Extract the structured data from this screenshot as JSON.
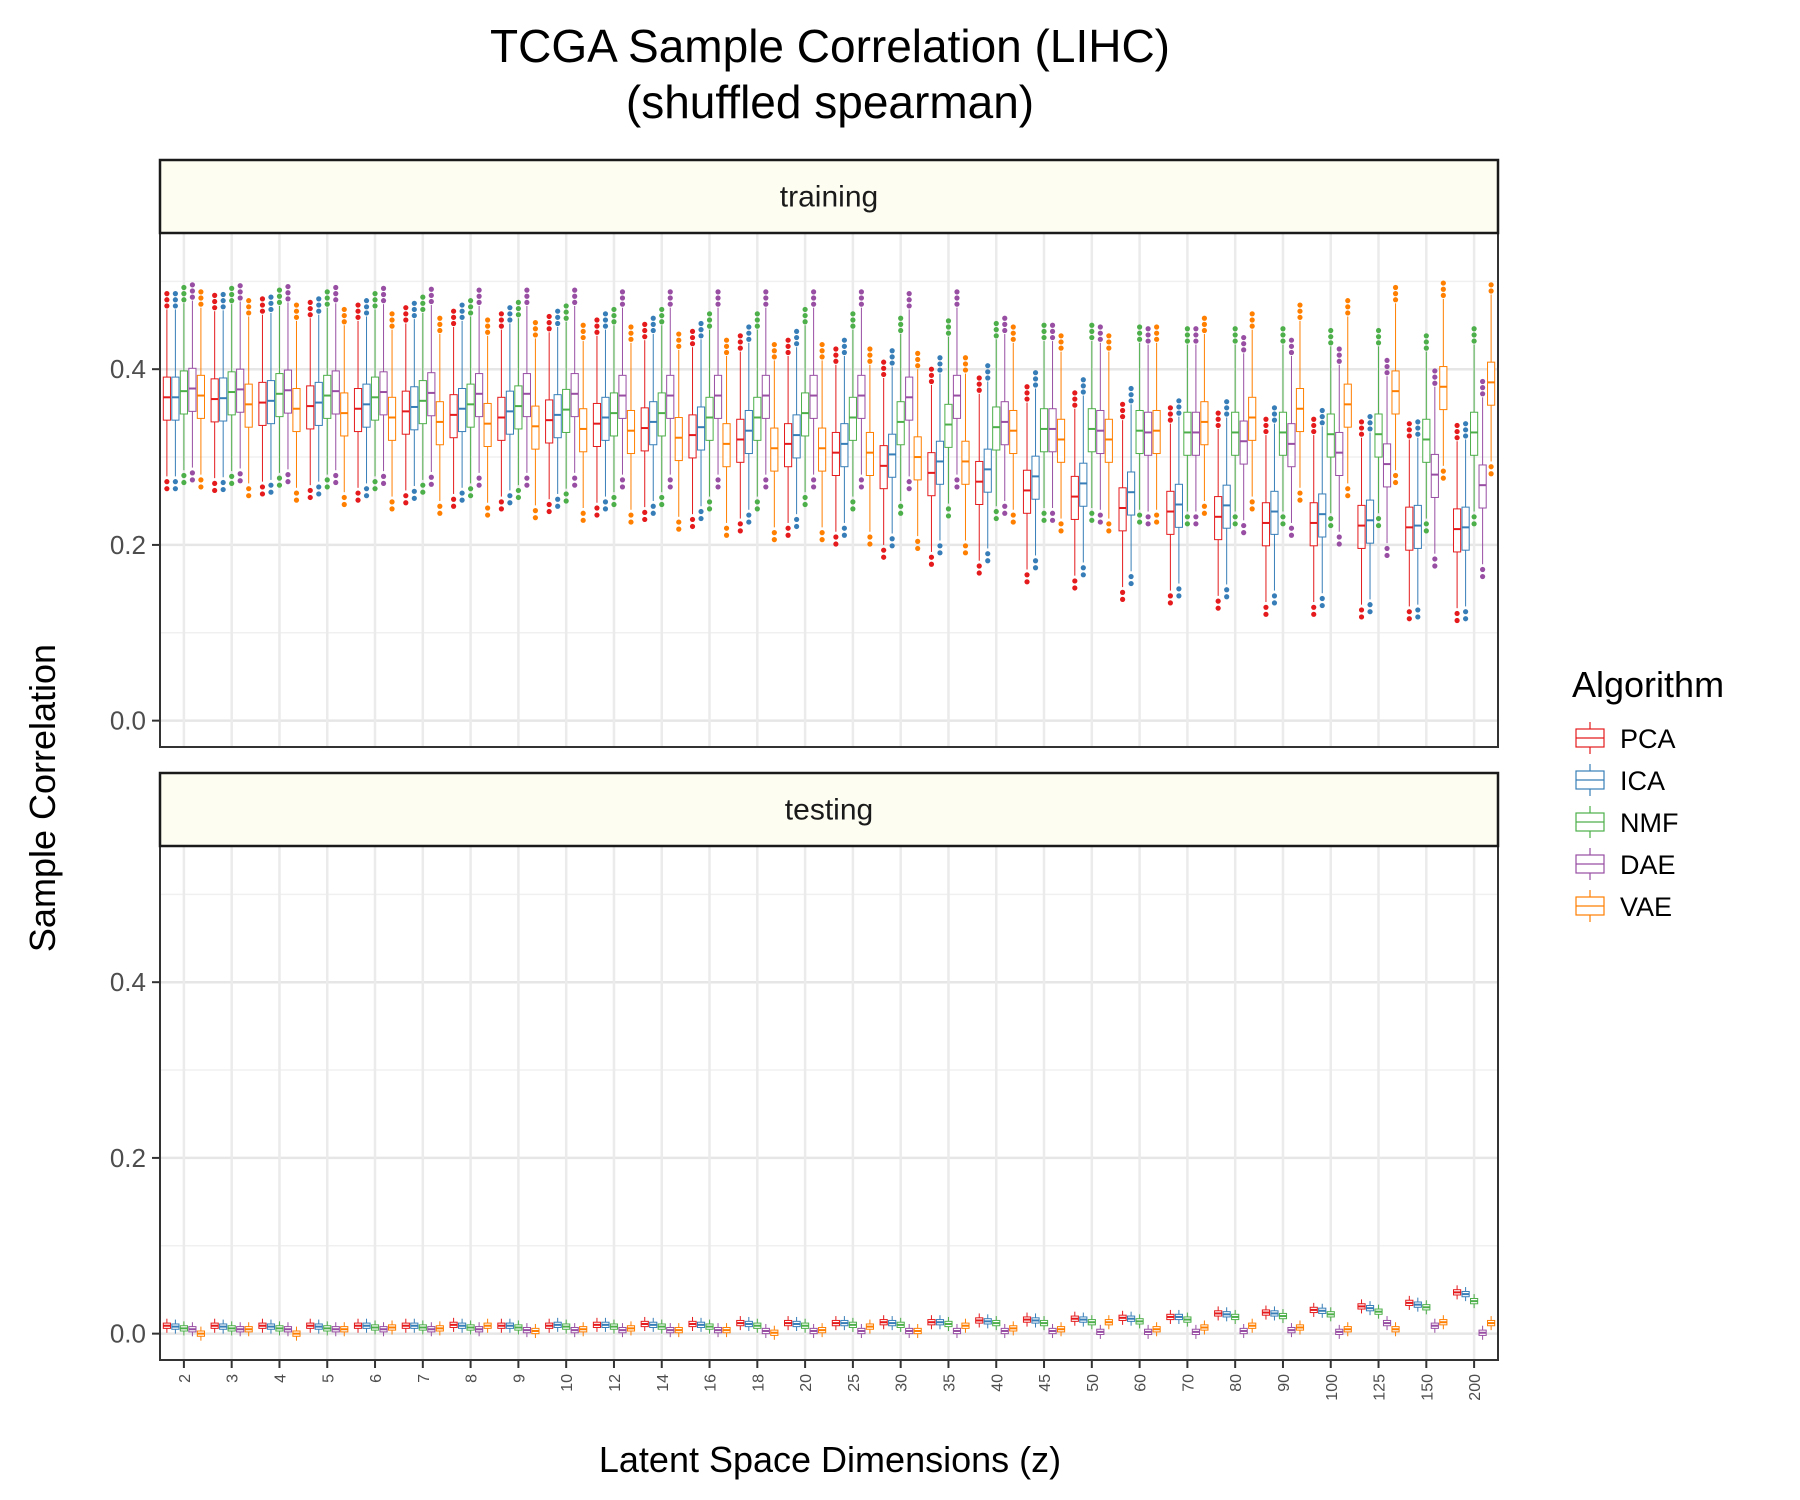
{
  "chart_data": {
    "type": "box",
    "title": "TCGA Sample Correlation (LIHC)",
    "subtitle": "(shuffled spearman)",
    "xlabel": "Latent Space Dimensions (z)",
    "ylabel": "Sample Correlation",
    "ylim": [
      -0.03,
      0.555
    ],
    "yticks": [
      0.0,
      0.2,
      0.4
    ],
    "grid": true,
    "legend": {
      "title": "Algorithm",
      "position": "right",
      "entries": [
        "PCA",
        "ICA",
        "NMF",
        "DAE",
        "VAE"
      ]
    },
    "colors": {
      "PCA": "#e41a1c",
      "ICA": "#377eb8",
      "NMF": "#4daf4a",
      "DAE": "#984ea3",
      "VAE": "#ff7f00"
    },
    "categories": [
      "2",
      "3",
      "4",
      "5",
      "6",
      "7",
      "8",
      "9",
      "10",
      "12",
      "14",
      "16",
      "18",
      "20",
      "25",
      "30",
      "35",
      "40",
      "45",
      "50",
      "60",
      "70",
      "80",
      "90",
      "100",
      "125",
      "150",
      "200"
    ],
    "panels": [
      {
        "name": "training",
        "series": [
          {
            "name": "PCA",
            "median": [
              0.368,
              0.366,
              0.362,
              0.358,
              0.355,
              0.352,
              0.348,
              0.345,
              0.342,
              0.338,
              0.333,
              0.325,
              0.32,
              0.315,
              0.305,
              0.29,
              0.282,
              0.272,
              0.262,
              0.255,
              0.242,
              0.238,
              0.232,
              0.225,
              0.225,
              0.222,
              0.22,
              0.218
            ]
          },
          {
            "name": "ICA",
            "median": [
              0.368,
              0.367,
              0.364,
              0.362,
              0.36,
              0.357,
              0.355,
              0.352,
              0.348,
              0.345,
              0.34,
              0.334,
              0.33,
              0.325,
              0.315,
              0.303,
              0.295,
              0.286,
              0.278,
              0.27,
              0.26,
              0.246,
              0.245,
              0.238,
              0.235,
              0.228,
              0.222,
              0.22
            ]
          },
          {
            "name": "NMF",
            "median": [
              0.375,
              0.374,
              0.372,
              0.37,
              0.368,
              0.364,
              0.36,
              0.358,
              0.354,
              0.35,
              0.35,
              0.345,
              0.345,
              0.35,
              0.345,
              0.34,
              0.337,
              0.334,
              0.332,
              0.332,
              0.33,
              0.328,
              0.328,
              0.328,
              0.326,
              0.326,
              0.32,
              0.328
            ]
          },
          {
            "name": "DAE",
            "median": [
              0.378,
              0.377,
              0.376,
              0.375,
              0.374,
              0.373,
              0.372,
              0.372,
              0.372,
              0.37,
              0.37,
              0.37,
              0.37,
              0.37,
              0.37,
              0.368,
              0.37,
              0.34,
              0.332,
              0.33,
              0.328,
              0.328,
              0.318,
              0.315,
              0.305,
              0.292,
              0.28,
              0.268
            ]
          },
          {
            "name": "VAE",
            "median": [
              0.37,
              0.36,
              0.355,
              0.35,
              0.345,
              0.34,
              0.338,
              0.335,
              0.332,
              0.33,
              0.322,
              0.315,
              0.31,
              0.31,
              0.305,
              0.3,
              0.295,
              0.33,
              0.32,
              0.32,
              0.33,
              0.34,
              0.345,
              0.355,
              0.36,
              0.375,
              0.38,
              0.385
            ]
          }
        ]
      },
      {
        "name": "testing",
        "series": [
          {
            "name": "PCA",
            "median": [
              0.009,
              0.009,
              0.009,
              0.009,
              0.009,
              0.009,
              0.01,
              0.009,
              0.009,
              0.01,
              0.011,
              0.011,
              0.012,
              0.012,
              0.012,
              0.013,
              0.013,
              0.015,
              0.016,
              0.017,
              0.018,
              0.019,
              0.023,
              0.024,
              0.027,
              0.031,
              0.035,
              0.047
            ]
          },
          {
            "name": "ICA",
            "median": [
              0.008,
              0.008,
              0.008,
              0.008,
              0.009,
              0.009,
              0.009,
              0.009,
              0.01,
              0.01,
              0.01,
              0.01,
              0.011,
              0.011,
              0.012,
              0.012,
              0.013,
              0.014,
              0.015,
              0.016,
              0.017,
              0.019,
              0.022,
              0.023,
              0.026,
              0.029,
              0.033,
              0.045
            ]
          },
          {
            "name": "NMF",
            "median": [
              0.006,
              0.006,
              0.006,
              0.006,
              0.007,
              0.007,
              0.007,
              0.007,
              0.008,
              0.008,
              0.008,
              0.008,
              0.009,
              0.009,
              0.01,
              0.01,
              0.011,
              0.012,
              0.012,
              0.013,
              0.014,
              0.016,
              0.019,
              0.02,
              0.022,
              0.025,
              0.03,
              0.037
            ]
          },
          {
            "name": "DAE",
            "median": [
              0.005,
              0.005,
              0.005,
              0.005,
              0.005,
              0.005,
              0.005,
              0.004,
              0.004,
              0.004,
              0.004,
              0.004,
              0.003,
              0.003,
              0.003,
              0.003,
              0.003,
              0.003,
              0.003,
              0.002,
              0.002,
              0.002,
              0.003,
              0.004,
              0.002,
              0.012,
              0.009,
              0.001
            ]
          },
          {
            "name": "VAE",
            "median": [
              0.0,
              0.005,
              0.0,
              0.005,
              0.007,
              0.006,
              0.009,
              0.003,
              0.005,
              0.006,
              0.004,
              0.004,
              0.001,
              0.004,
              0.008,
              0.003,
              0.009,
              0.006,
              0.005,
              0.013,
              0.005,
              0.007,
              0.009,
              0.007,
              0.005,
              0.005,
              0.013,
              0.012
            ]
          }
        ]
      }
    ]
  }
}
